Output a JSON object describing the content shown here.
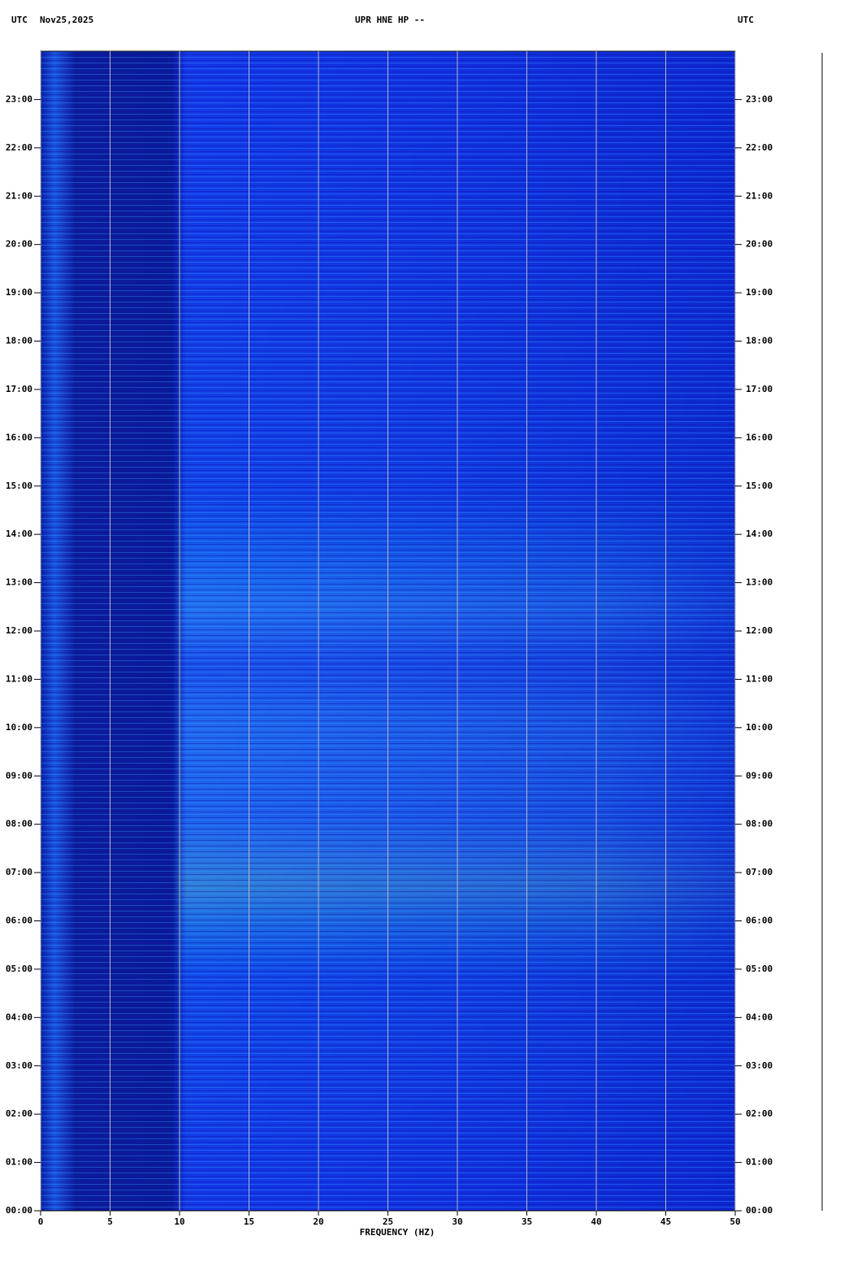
{
  "chart_data": {
    "type": "spectrogram",
    "title": "UPR HNE HP --",
    "timezone_left": "UTC",
    "date": "Nov25,2025",
    "timezone_right": "UTC",
    "xlabel": "FREQUENCY (HZ)",
    "xlim": [
      0,
      50
    ],
    "xticks": [
      0,
      5,
      10,
      15,
      20,
      25,
      30,
      35,
      40,
      45,
      50
    ],
    "ylim": [
      0,
      24
    ],
    "yticks": [
      {
        "value": 0,
        "label": "00:00"
      },
      {
        "value": 1,
        "label": "01:00"
      },
      {
        "value": 2,
        "label": "02:00"
      },
      {
        "value": 3,
        "label": "03:00"
      },
      {
        "value": 4,
        "label": "04:00"
      },
      {
        "value": 5,
        "label": "05:00"
      },
      {
        "value": 6,
        "label": "06:00"
      },
      {
        "value": 7,
        "label": "07:00"
      },
      {
        "value": 8,
        "label": "08:00"
      },
      {
        "value": 9,
        "label": "09:00"
      },
      {
        "value": 10,
        "label": "10:00"
      },
      {
        "value": 11,
        "label": "11:00"
      },
      {
        "value": 12,
        "label": "12:00"
      },
      {
        "value": 13,
        "label": "13:00"
      },
      {
        "value": 14,
        "label": "14:00"
      },
      {
        "value": 15,
        "label": "15:00"
      },
      {
        "value": 16,
        "label": "16:00"
      },
      {
        "value": 17,
        "label": "17:00"
      },
      {
        "value": 18,
        "label": "18:00"
      },
      {
        "value": 19,
        "label": "19:00"
      },
      {
        "value": 20,
        "label": "20:00"
      },
      {
        "value": 21,
        "label": "21:00"
      },
      {
        "value": 22,
        "label": "22:00"
      },
      {
        "value": 23,
        "label": "23:00"
      }
    ],
    "grid": true
  }
}
